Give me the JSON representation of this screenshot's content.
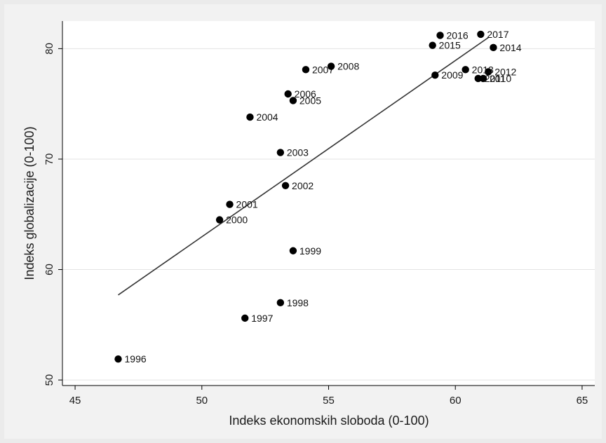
{
  "chart_data": {
    "type": "scatter",
    "title": "",
    "xlabel": "Indeks ekonomskih sloboda (0-100)",
    "ylabel": "Indeks globalizacije (0-100)",
    "xlim": [
      44.5,
      65.5
    ],
    "ylim": [
      49.5,
      82.5
    ],
    "xticks": [
      45,
      50,
      55,
      60,
      65
    ],
    "yticks": [
      50,
      60,
      70,
      80
    ],
    "grid": "horizontal",
    "legend": "none",
    "points": [
      {
        "label": "1996",
        "x": 46.7,
        "y": 51.9
      },
      {
        "label": "1997",
        "x": 51.7,
        "y": 55.6
      },
      {
        "label": "1998",
        "x": 53.1,
        "y": 57.0
      },
      {
        "label": "1999",
        "x": 53.6,
        "y": 61.7
      },
      {
        "label": "2000",
        "x": 50.7,
        "y": 64.5
      },
      {
        "label": "2001",
        "x": 51.1,
        "y": 65.9
      },
      {
        "label": "2002",
        "x": 53.3,
        "y": 67.6
      },
      {
        "label": "2003",
        "x": 53.1,
        "y": 70.6
      },
      {
        "label": "2004",
        "x": 51.9,
        "y": 73.8
      },
      {
        "label": "2005",
        "x": 53.6,
        "y": 75.3
      },
      {
        "label": "2006",
        "x": 53.4,
        "y": 75.9
      },
      {
        "label": "2007",
        "x": 54.1,
        "y": 78.1
      },
      {
        "label": "2008",
        "x": 55.1,
        "y": 78.4
      },
      {
        "label": "2009",
        "x": 59.2,
        "y": 77.6
      },
      {
        "label": "2010",
        "x": 61.1,
        "y": 77.3
      },
      {
        "label": "2011",
        "x": 60.9,
        "y": 77.3
      },
      {
        "label": "2012",
        "x": 61.3,
        "y": 77.9
      },
      {
        "label": "2013",
        "x": 60.4,
        "y": 78.1
      },
      {
        "label": "2014",
        "x": 61.5,
        "y": 80.1
      },
      {
        "label": "2015",
        "x": 59.1,
        "y": 80.3
      },
      {
        "label": "2016",
        "x": 59.4,
        "y": 81.2
      },
      {
        "label": "2017",
        "x": 61.0,
        "y": 81.3
      }
    ],
    "fit_line": {
      "x": [
        46.7,
        61.3
      ],
      "y": [
        57.7,
        81.0
      ]
    },
    "colors": {
      "background": "#ebebeb",
      "plot": "#ffffff",
      "marker": "#000000",
      "fit": "#333333",
      "grid": "#e3e3e3"
    }
  }
}
